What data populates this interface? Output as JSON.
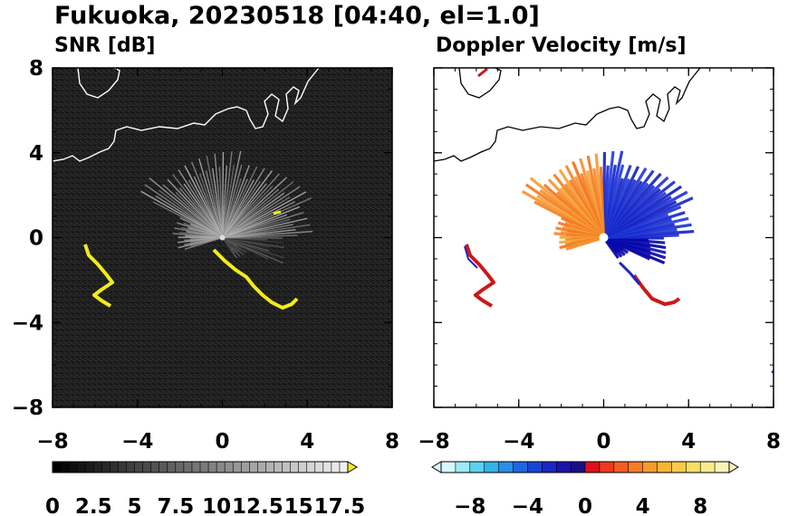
{
  "figure": {
    "title": "Fukuoka, 20230518 [04:40, el=1.0]"
  },
  "chart_data": [
    {
      "type": "heatmap",
      "title": "SNR [dB]",
      "xlim": [
        -8,
        8
      ],
      "ylim": [
        -8,
        8
      ],
      "x_ticks": [
        "−8",
        "−4",
        "0",
        "4",
        "8"
      ],
      "y_ticks": [
        "8",
        "4",
        "0",
        "−4",
        "−8"
      ],
      "colorbar": {
        "min": 0,
        "max": 18,
        "step": 0.5,
        "extend": "max",
        "tick_labels": [
          "0",
          "2.5",
          "5",
          "7.5",
          "10",
          "12.5",
          "15",
          "17.5"
        ],
        "low_color": "#000000",
        "high_color": "#ffffff",
        "extend_color": "#f2ec1a"
      },
      "background_color": "#1e1e1e",
      "coastline_color": "#ffffff",
      "echo_color": "#f2ec1a"
    },
    {
      "type": "heatmap",
      "title": "Doppler Velocity [m/s]",
      "xlim": [
        -8,
        8
      ],
      "ylim": [
        -8,
        8
      ],
      "x_ticks": [
        "−8",
        "−4",
        "0",
        "4",
        "8"
      ],
      "y_ticks": [
        "8",
        "4",
        "0",
        "−4",
        "−8"
      ],
      "colorbar": {
        "min": -10,
        "max": 10,
        "extend": "both",
        "tick_labels": [
          "−8",
          "−4",
          "0",
          "4",
          "8"
        ],
        "colors": [
          "#d8f6fb",
          "#9eeaf5",
          "#5cd2ee",
          "#33b3ea",
          "#2a8ee6",
          "#1f66df",
          "#1a43d6",
          "#1a27c4",
          "#1a14a8",
          "#1a0e84",
          "#e0101a",
          "#ee3a1f",
          "#f25e22",
          "#f47d26",
          "#f59a2c",
          "#f6b535",
          "#f8cc48",
          "#f9de66",
          "#faeb8c",
          "#fbf4b8"
        ]
      },
      "background_color": "#ffffff",
      "coastline_color": "#000000",
      "approaching_color": "#1a27c4",
      "receding_color": "#f08a28"
    }
  ]
}
